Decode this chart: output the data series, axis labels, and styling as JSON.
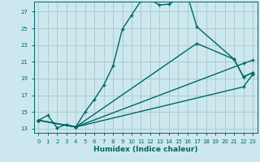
{
  "title": "",
  "xlabel": "Humidex (Indice chaleur)",
  "background_color": "#cce8ee",
  "grid_color": "#aacccc",
  "line_color": "#006666",
  "xlim": [
    -0.5,
    23.5
  ],
  "ylim": [
    12.5,
    28.2
  ],
  "xticks": [
    0,
    1,
    2,
    3,
    4,
    5,
    6,
    7,
    8,
    9,
    10,
    11,
    12,
    13,
    14,
    15,
    16,
    17,
    18,
    19,
    20,
    21,
    22,
    23
  ],
  "yticks": [
    13,
    15,
    17,
    19,
    21,
    23,
    25,
    27
  ],
  "series1": [
    [
      0,
      14.0
    ],
    [
      1,
      14.6
    ],
    [
      2,
      13.1
    ],
    [
      3,
      13.5
    ],
    [
      4,
      13.2
    ],
    [
      5,
      15.0
    ],
    [
      6,
      16.5
    ],
    [
      7,
      18.2
    ],
    [
      8,
      20.5
    ],
    [
      9,
      24.9
    ],
    [
      10,
      26.6
    ],
    [
      11,
      28.3
    ],
    [
      12,
      28.4
    ],
    [
      13,
      27.8
    ],
    [
      14,
      27.9
    ],
    [
      15,
      28.5
    ],
    [
      16,
      28.9
    ],
    [
      17,
      25.2
    ],
    [
      21,
      21.3
    ],
    [
      22,
      19.2
    ],
    [
      23,
      19.7
    ]
  ],
  "series2": [
    [
      0,
      14.0
    ],
    [
      4,
      13.2
    ],
    [
      17,
      23.2
    ],
    [
      21,
      21.3
    ],
    [
      22,
      19.2
    ],
    [
      23,
      19.7
    ]
  ],
  "series3": [
    [
      0,
      14.0
    ],
    [
      4,
      13.2
    ],
    [
      22,
      20.8
    ],
    [
      23,
      21.2
    ]
  ],
  "series4": [
    [
      0,
      14.0
    ],
    [
      4,
      13.2
    ],
    [
      22,
      18.0
    ],
    [
      23,
      19.5
    ]
  ]
}
